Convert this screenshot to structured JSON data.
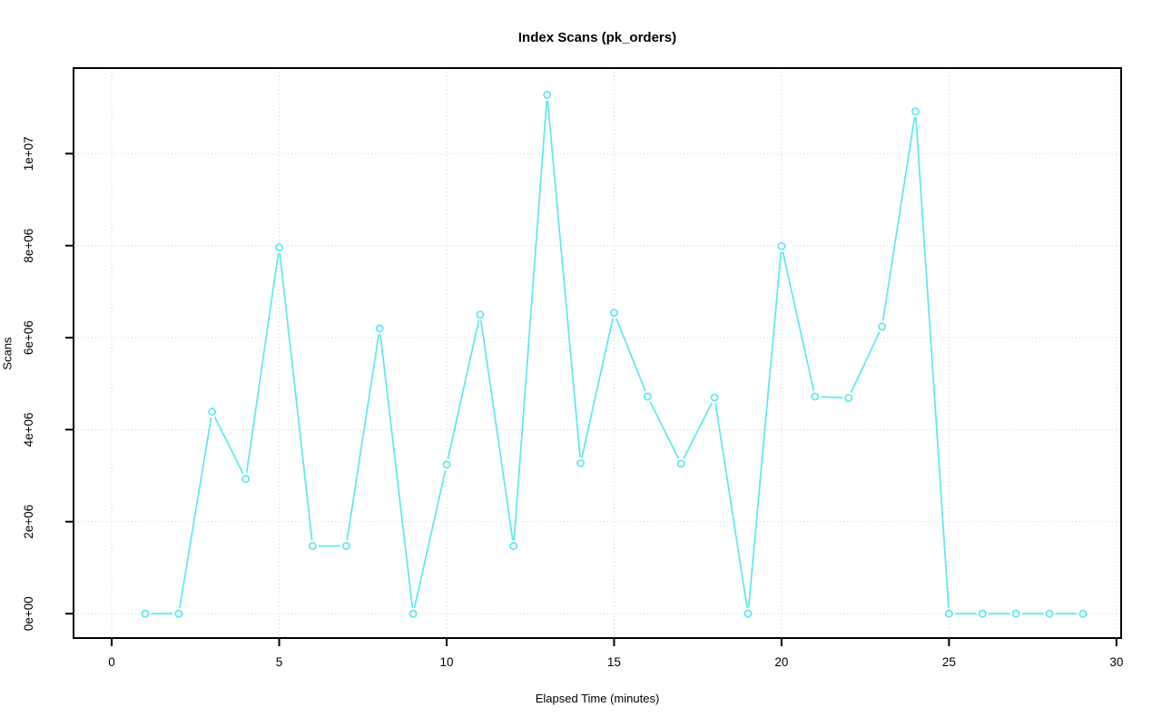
{
  "chart_data": {
    "type": "line",
    "title": "Index Scans (pk_orders)",
    "xlabel": "Elapsed Time (minutes)",
    "ylabel": "Scans",
    "xlim": [
      -1.14,
      30.14
    ],
    "ylim": [
      -530000,
      11860000
    ],
    "x_ticks": [
      0,
      5,
      10,
      15,
      20,
      25,
      30
    ],
    "x_tick_labels": [
      "0",
      "5",
      "10",
      "15",
      "20",
      "25",
      "30"
    ],
    "y_ticks": [
      0,
      2000000,
      4000000,
      6000000,
      8000000,
      10000000
    ],
    "y_tick_labels": [
      "0e+00",
      "2e+06",
      "4e+06",
      "6e+06",
      "8e+06",
      "1e+07"
    ],
    "grid": true,
    "legend_position": "none",
    "marker": "open-circle",
    "line_type": "points-and-segments",
    "series": [
      {
        "name": "pk_orders index scans",
        "x": [
          1,
          2,
          3,
          4,
          5,
          6,
          7,
          8,
          9,
          10,
          11,
          12,
          13,
          14,
          15,
          16,
          17,
          18,
          19,
          20,
          21,
          22,
          23,
          24,
          25,
          26,
          27,
          28,
          29
        ],
        "y": [
          0,
          0,
          4390000,
          2930000,
          7960000,
          1470000,
          1470000,
          6200000,
          0,
          3240000,
          6500000,
          1470000,
          11280000,
          3270000,
          6540000,
          4720000,
          3260000,
          4700000,
          0,
          7990000,
          4720000,
          4690000,
          6240000,
          10920000,
          0,
          0,
          0,
          0,
          0
        ]
      }
    ],
    "colors": {
      "series": "#5BE8F0",
      "grid": "#D3D3D3",
      "axis": "#000000",
      "text": "#000000",
      "background": "#FFFFFF"
    }
  }
}
